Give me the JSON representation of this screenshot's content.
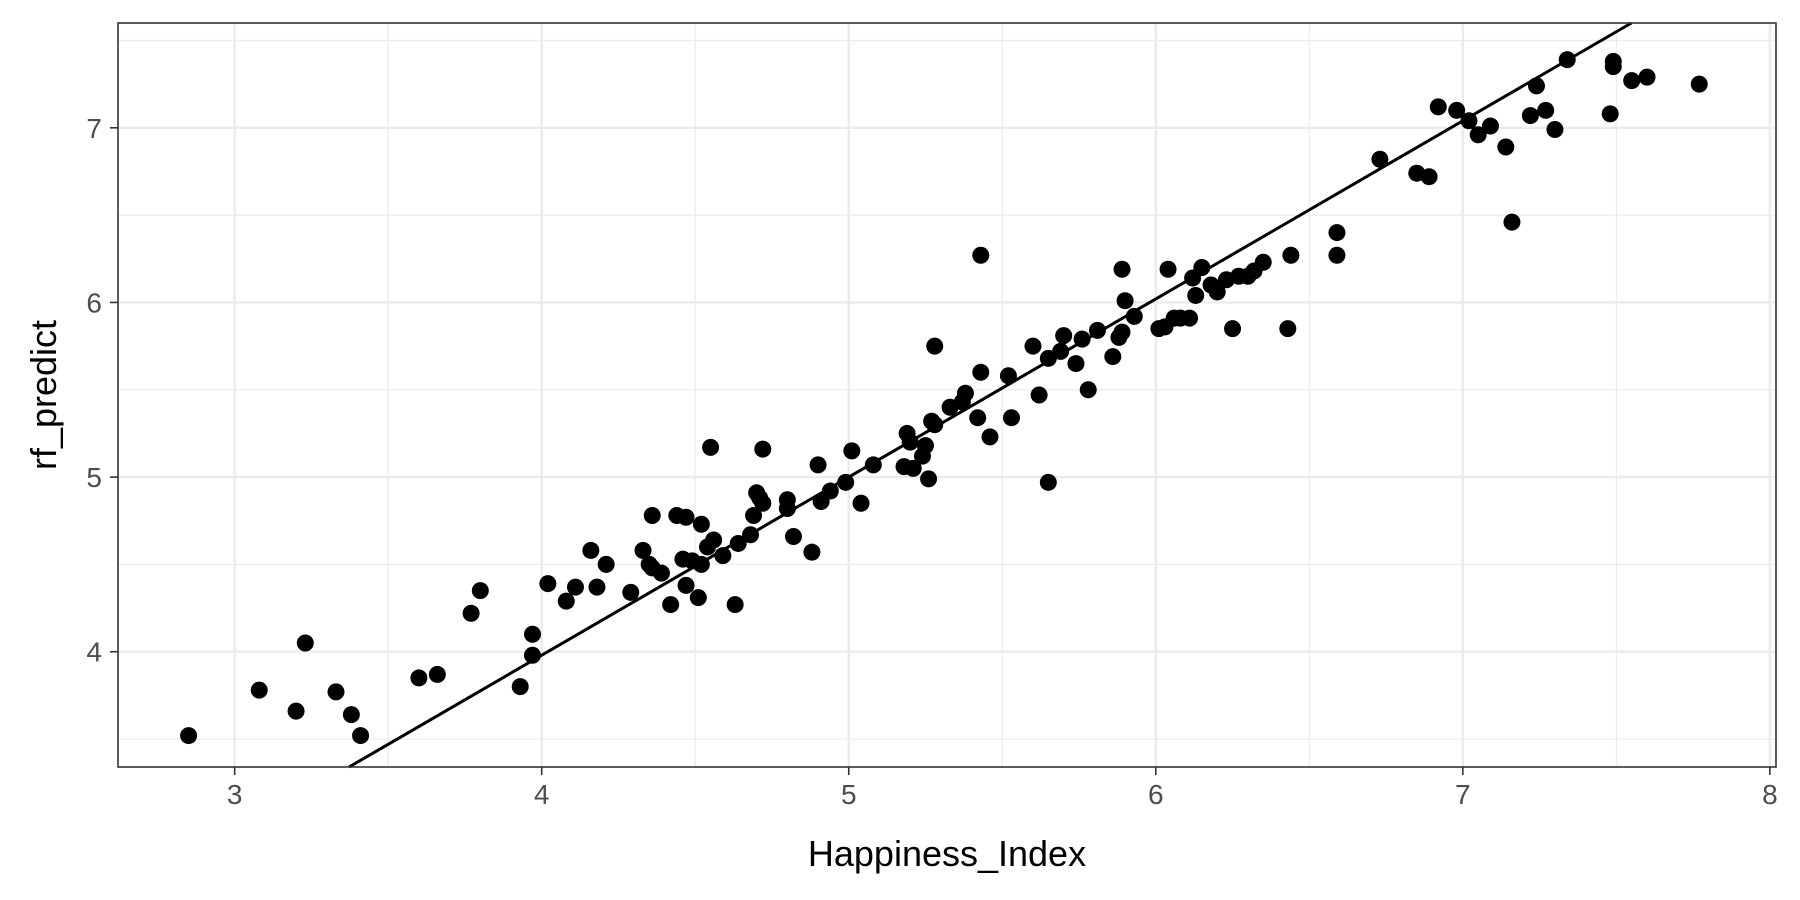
{
  "chart_data": {
    "type": "scatter",
    "title": "",
    "xlabel": "Happiness_Index",
    "ylabel": "rf_predict",
    "xlim": [
      2.62,
      8.02
    ],
    "ylim": [
      3.34,
      7.6
    ],
    "xticks": [
      3,
      4,
      5,
      6,
      7,
      8
    ],
    "yticks": [
      4,
      5,
      6,
      7
    ],
    "xtick_labels": [
      "3",
      "4",
      "5",
      "6",
      "7",
      "8"
    ],
    "ytick_labels": [
      "4",
      "5",
      "6",
      "7"
    ],
    "x_minor": [
      3.5,
      4.5,
      5.5,
      6.5,
      7.5
    ],
    "y_minor": [
      3.5,
      4.5,
      5.5,
      6.5,
      7.5
    ],
    "grid": true,
    "reference_line": {
      "slope": 1.02,
      "intercept": -0.1
    },
    "points": [
      [
        2.85,
        3.52
      ],
      [
        3.08,
        3.78
      ],
      [
        3.2,
        3.66
      ],
      [
        3.23,
        4.05
      ],
      [
        3.33,
        3.77
      ],
      [
        3.38,
        3.64
      ],
      [
        3.41,
        3.52
      ],
      [
        3.6,
        3.85
      ],
      [
        3.66,
        3.87
      ],
      [
        3.77,
        4.22
      ],
      [
        3.8,
        4.35
      ],
      [
        3.93,
        3.8
      ],
      [
        3.97,
        3.98
      ],
      [
        3.97,
        4.1
      ],
      [
        4.02,
        4.39
      ],
      [
        4.08,
        4.29
      ],
      [
        4.11,
        4.37
      ],
      [
        4.16,
        4.58
      ],
      [
        4.18,
        4.37
      ],
      [
        4.21,
        4.5
      ],
      [
        4.29,
        4.34
      ],
      [
        4.33,
        4.58
      ],
      [
        4.35,
        4.5
      ],
      [
        4.36,
        4.48
      ],
      [
        4.36,
        4.78
      ],
      [
        4.39,
        4.45
      ],
      [
        4.42,
        4.27
      ],
      [
        4.44,
        4.78
      ],
      [
        4.46,
        4.53
      ],
      [
        4.47,
        4.77
      ],
      [
        4.47,
        4.38
      ],
      [
        4.49,
        4.52
      ],
      [
        4.51,
        4.31
      ],
      [
        4.52,
        4.5
      ],
      [
        4.52,
        4.73
      ],
      [
        4.54,
        4.6
      ],
      [
        4.55,
        5.17
      ],
      [
        4.56,
        4.64
      ],
      [
        4.59,
        4.55
      ],
      [
        4.63,
        4.27
      ],
      [
        4.64,
        4.62
      ],
      [
        4.68,
        4.67
      ],
      [
        4.69,
        4.78
      ],
      [
        4.7,
        4.91
      ],
      [
        4.71,
        4.88
      ],
      [
        4.72,
        5.16
      ],
      [
        4.72,
        4.85
      ],
      [
        4.8,
        4.82
      ],
      [
        4.8,
        4.87
      ],
      [
        4.82,
        4.66
      ],
      [
        4.88,
        4.57
      ],
      [
        4.9,
        5.07
      ],
      [
        4.91,
        4.86
      ],
      [
        4.94,
        4.92
      ],
      [
        4.99,
        4.97
      ],
      [
        5.01,
        5.15
      ],
      [
        5.04,
        4.85
      ],
      [
        5.08,
        5.07
      ],
      [
        5.18,
        5.06
      ],
      [
        5.19,
        5.25
      ],
      [
        5.2,
        5.2
      ],
      [
        5.21,
        5.05
      ],
      [
        5.24,
        5.12
      ],
      [
        5.25,
        5.18
      ],
      [
        5.26,
        4.99
      ],
      [
        5.27,
        5.32
      ],
      [
        5.28,
        5.3
      ],
      [
        5.28,
        5.75
      ],
      [
        5.33,
        5.4
      ],
      [
        5.37,
        5.43
      ],
      [
        5.38,
        5.48
      ],
      [
        5.42,
        5.34
      ],
      [
        5.43,
        6.27
      ],
      [
        5.43,
        5.6
      ],
      [
        5.46,
        5.23
      ],
      [
        5.52,
        5.58
      ],
      [
        5.53,
        5.34
      ],
      [
        5.6,
        5.75
      ],
      [
        5.62,
        5.47
      ],
      [
        5.65,
        5.68
      ],
      [
        5.65,
        4.97
      ],
      [
        5.69,
        5.72
      ],
      [
        5.7,
        5.81
      ],
      [
        5.74,
        5.65
      ],
      [
        5.76,
        5.79
      ],
      [
        5.78,
        5.5
      ],
      [
        5.81,
        5.84
      ],
      [
        5.86,
        5.69
      ],
      [
        5.88,
        5.8
      ],
      [
        5.89,
        5.83
      ],
      [
        5.89,
        6.19
      ],
      [
        5.9,
        6.01
      ],
      [
        5.93,
        5.92
      ],
      [
        6.01,
        5.85
      ],
      [
        6.03,
        5.86
      ],
      [
        6.04,
        6.19
      ],
      [
        6.06,
        5.91
      ],
      [
        6.08,
        5.91
      ],
      [
        6.11,
        5.91
      ],
      [
        6.12,
        6.14
      ],
      [
        6.13,
        6.04
      ],
      [
        6.15,
        6.2
      ],
      [
        6.18,
        6.1
      ],
      [
        6.2,
        6.06
      ],
      [
        6.23,
        6.13
      ],
      [
        6.25,
        5.85
      ],
      [
        6.27,
        6.15
      ],
      [
        6.3,
        6.15
      ],
      [
        6.32,
        6.18
      ],
      [
        6.35,
        6.23
      ],
      [
        6.43,
        5.85
      ],
      [
        6.44,
        6.27
      ],
      [
        6.59,
        6.4
      ],
      [
        6.59,
        6.27
      ],
      [
        6.73,
        6.82
      ],
      [
        6.85,
        6.74
      ],
      [
        6.89,
        6.72
      ],
      [
        6.92,
        7.12
      ],
      [
        6.98,
        7.1
      ],
      [
        7.02,
        7.04
      ],
      [
        7.05,
        6.96
      ],
      [
        7.09,
        7.01
      ],
      [
        7.14,
        6.89
      ],
      [
        7.16,
        6.46
      ],
      [
        7.22,
        7.07
      ],
      [
        7.24,
        7.24
      ],
      [
        7.27,
        7.1
      ],
      [
        7.3,
        6.99
      ],
      [
        7.34,
        7.39
      ],
      [
        7.48,
        7.08
      ],
      [
        7.49,
        7.38
      ],
      [
        7.49,
        7.35
      ],
      [
        7.55,
        7.27
      ],
      [
        7.6,
        7.29
      ],
      [
        7.77,
        7.25
      ]
    ]
  }
}
